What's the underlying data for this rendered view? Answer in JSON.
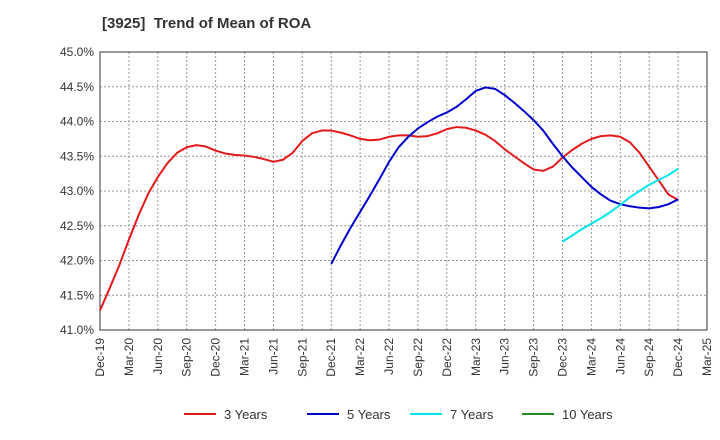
{
  "chart_data": {
    "type": "line",
    "title": "[3925]  Trend of Mean of ROA",
    "xlabel": "",
    "ylabel": "",
    "x_ticks": [
      "Dec-19",
      "Mar-20",
      "Jun-20",
      "Sep-20",
      "Dec-20",
      "Mar-21",
      "Jun-21",
      "Sep-21",
      "Dec-21",
      "Mar-22",
      "Jun-22",
      "Sep-22",
      "Dec-22",
      "Mar-23",
      "Jun-23",
      "Sep-23",
      "Dec-23",
      "Mar-24",
      "Jun-24",
      "Sep-24",
      "Dec-24",
      "Mar-25"
    ],
    "y_ticks": [
      "41.0%",
      "41.5%",
      "42.0%",
      "42.5%",
      "43.0%",
      "43.5%",
      "44.0%",
      "44.5%",
      "45.0%"
    ],
    "ylim": [
      41.0,
      45.0
    ],
    "grid": true,
    "legend_position": "bottom",
    "series": [
      {
        "name": "3 Years",
        "color": "#e31a1c",
        "x": [
          "2019-12",
          "2020-01",
          "2020-02",
          "2020-03",
          "2020-04",
          "2020-05",
          "2020-06",
          "2020-07",
          "2020-08",
          "2020-09",
          "2020-10",
          "2020-11",
          "2020-12",
          "2021-01",
          "2021-02",
          "2021-03",
          "2021-04",
          "2021-05",
          "2021-06",
          "2021-07",
          "2021-08",
          "2021-09",
          "2021-10",
          "2021-11",
          "2021-12",
          "2022-01",
          "2022-02",
          "2022-03",
          "2022-04",
          "2022-05",
          "2022-06",
          "2022-07",
          "2022-08",
          "2022-09",
          "2022-10",
          "2022-11",
          "2022-12",
          "2023-01",
          "2023-02",
          "2023-03",
          "2023-04",
          "2023-05",
          "2023-06",
          "2023-07",
          "2023-08",
          "2023-09",
          "2023-10",
          "2023-11",
          "2023-12",
          "2024-01",
          "2024-02",
          "2024-03",
          "2024-04",
          "2024-05",
          "2024-06",
          "2024-07",
          "2024-08",
          "2024-09",
          "2024-10",
          "2024-11",
          "2024-12"
        ],
        "values": [
          41.28,
          41.6,
          41.93,
          42.3,
          42.65,
          42.96,
          43.2,
          43.4,
          43.55,
          43.63,
          43.66,
          43.64,
          43.58,
          43.54,
          43.52,
          43.51,
          43.49,
          43.46,
          43.42,
          43.45,
          43.55,
          43.72,
          43.83,
          43.87,
          43.87,
          43.84,
          43.8,
          43.75,
          43.73,
          43.74,
          43.78,
          43.8,
          43.8,
          43.78,
          43.79,
          43.83,
          43.89,
          43.92,
          43.91,
          43.87,
          43.81,
          43.72,
          43.6,
          43.5,
          43.4,
          43.31,
          43.29,
          43.35,
          43.48,
          43.59,
          43.68,
          43.75,
          43.79,
          43.8,
          43.78,
          43.7,
          43.55,
          43.35,
          43.15,
          42.95,
          42.87
        ]
      },
      {
        "name": "5 Years",
        "color": "#0000cc",
        "x": [
          "2021-12",
          "2022-01",
          "2022-02",
          "2022-03",
          "2022-04",
          "2022-05",
          "2022-06",
          "2022-07",
          "2022-08",
          "2022-09",
          "2022-10",
          "2022-11",
          "2022-12",
          "2023-01",
          "2023-02",
          "2023-03",
          "2023-04",
          "2023-05",
          "2023-06",
          "2023-07",
          "2023-08",
          "2023-09",
          "2023-10",
          "2023-11",
          "2023-12",
          "2024-01",
          "2024-02",
          "2024-03",
          "2024-04",
          "2024-05",
          "2024-06",
          "2024-07",
          "2024-08",
          "2024-09",
          "2024-10",
          "2024-11",
          "2024-12"
        ],
        "values": [
          41.95,
          42.22,
          42.47,
          42.7,
          42.93,
          43.17,
          43.42,
          43.63,
          43.78,
          43.9,
          43.99,
          44.07,
          44.13,
          44.21,
          44.32,
          44.44,
          44.49,
          44.47,
          44.38,
          44.27,
          44.15,
          44.02,
          43.87,
          43.68,
          43.5,
          43.34,
          43.2,
          43.06,
          42.95,
          42.86,
          42.81,
          42.78,
          42.76,
          42.75,
          42.77,
          42.81,
          42.88
        ]
      },
      {
        "name": "7 Years",
        "color": "#00e5ee",
        "x": [
          "2023-12",
          "2024-01",
          "2024-02",
          "2024-03",
          "2024-04",
          "2024-05",
          "2024-06",
          "2024-07",
          "2024-08",
          "2024-09",
          "2024-10",
          "2024-11",
          "2024-12"
        ],
        "values": [
          42.27,
          42.36,
          42.45,
          42.53,
          42.61,
          42.7,
          42.8,
          42.91,
          43.0,
          43.09,
          43.16,
          43.23,
          43.32
        ]
      },
      {
        "name": "10 Years",
        "color": "#228b22",
        "x": [],
        "values": []
      }
    ]
  }
}
